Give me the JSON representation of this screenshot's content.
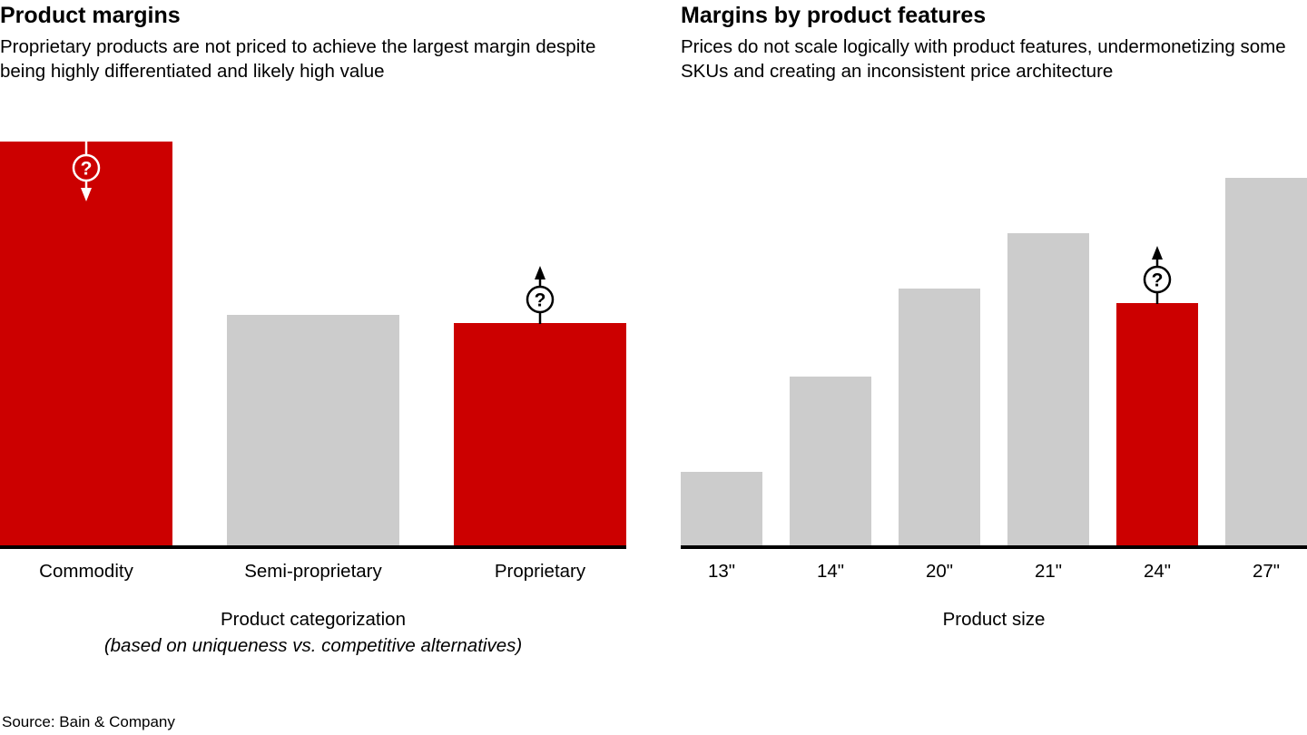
{
  "source_line": "Source: Bain & Company",
  "colors": {
    "accent_red": "#CC0000",
    "bar_gray": "#CCCCCC",
    "axis_black": "#000000",
    "text_black": "#000000",
    "background": "#FFFFFF"
  },
  "chart_data": [
    {
      "type": "bar",
      "title": "Product margins",
      "subtitle": "Proprietary products are not priced to achieve the largest margin despite being highly differentiated and likely high value",
      "categories": [
        "Commodity",
        "Semi-proprietary",
        "Proprietary"
      ],
      "values": [
        100,
        57,
        55
      ],
      "value_scale": "relative margin index (no y-axis shown), max bar = 100",
      "bar_colors": [
        "#CC0000",
        "#CCCCCC",
        "#CC0000"
      ],
      "xlabel": "Product categorization",
      "xlabel_note": "(based on uniqueness vs. competitive alternatives)",
      "ylim": [
        0,
        100
      ],
      "grid": false,
      "legend": false,
      "annotations": [
        {
          "category": "Commodity",
          "glyph": "?",
          "arrow": "down",
          "style": "white"
        },
        {
          "category": "Proprietary",
          "glyph": "?",
          "arrow": "up",
          "style": "black"
        }
      ]
    },
    {
      "type": "bar",
      "title": "Margins by product features",
      "subtitle": "Prices do not scale logically with product features, undermonetizing some SKUs and creating an inconsistent price architecture",
      "categories": [
        "13\"",
        "14\"",
        "20\"",
        "21\"",
        "24\"",
        "27\""
      ],
      "values": [
        20,
        46,
        70,
        85,
        66,
        100
      ],
      "value_scale": "relative margin index (no y-axis shown), max bar = 100",
      "bar_colors": [
        "#CCCCCC",
        "#CCCCCC",
        "#CCCCCC",
        "#CCCCCC",
        "#CC0000",
        "#CCCCCC"
      ],
      "xlabel": "Product size",
      "ylim": [
        0,
        100
      ],
      "grid": false,
      "legend": false,
      "annotations": [
        {
          "category": "24\"",
          "glyph": "?",
          "arrow": "up",
          "style": "black"
        }
      ]
    }
  ]
}
